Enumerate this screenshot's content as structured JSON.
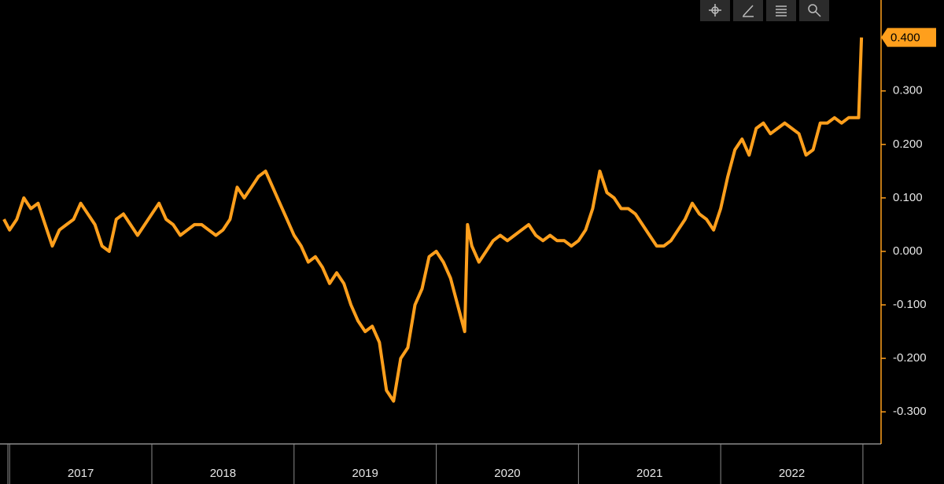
{
  "chart_data": {
    "type": "line",
    "x": [
      2016.96,
      2017.0,
      2017.05,
      2017.1,
      2017.15,
      2017.2,
      2017.25,
      2017.3,
      2017.35,
      2017.4,
      2017.45,
      2017.5,
      2017.55,
      2017.6,
      2017.65,
      2017.7,
      2017.75,
      2017.8,
      2017.85,
      2017.9,
      2017.95,
      2018.0,
      2018.05,
      2018.1,
      2018.15,
      2018.2,
      2018.25,
      2018.3,
      2018.35,
      2018.4,
      2018.45,
      2018.5,
      2018.55,
      2018.6,
      2018.65,
      2018.7,
      2018.75,
      2018.8,
      2018.85,
      2018.9,
      2018.95,
      2019.0,
      2019.05,
      2019.1,
      2019.15,
      2019.2,
      2019.25,
      2019.3,
      2019.35,
      2019.4,
      2019.45,
      2019.5,
      2019.55,
      2019.6,
      2019.65,
      2019.7,
      2019.75,
      2019.8,
      2019.85,
      2019.9,
      2019.95,
      2020.0,
      2020.05,
      2020.1,
      2020.15,
      2020.2,
      2020.22,
      2020.25,
      2020.3,
      2020.35,
      2020.4,
      2020.45,
      2020.5,
      2020.55,
      2020.6,
      2020.65,
      2020.7,
      2020.75,
      2020.8,
      2020.85,
      2020.9,
      2020.95,
      2021.0,
      2021.05,
      2021.1,
      2021.15,
      2021.2,
      2021.25,
      2021.3,
      2021.35,
      2021.4,
      2021.45,
      2021.5,
      2021.55,
      2021.6,
      2021.65,
      2021.7,
      2021.75,
      2021.8,
      2021.85,
      2021.9,
      2021.95,
      2022.0,
      2022.05,
      2022.1,
      2022.15,
      2022.2,
      2022.25,
      2022.3,
      2022.35,
      2022.4,
      2022.45,
      2022.5,
      2022.55,
      2022.6,
      2022.65,
      2022.7,
      2022.75,
      2022.8,
      2022.85,
      2022.9,
      2022.95,
      2022.97,
      2022.99
    ],
    "series": [
      {
        "color": "#ff9f1c",
        "values": [
          0.06,
          0.04,
          0.06,
          0.1,
          0.08,
          0.09,
          0.05,
          0.01,
          0.04,
          0.05,
          0.06,
          0.09,
          0.07,
          0.05,
          0.01,
          0.0,
          0.06,
          0.07,
          0.05,
          0.03,
          0.05,
          0.07,
          0.09,
          0.06,
          0.05,
          0.03,
          0.04,
          0.05,
          0.05,
          0.04,
          0.03,
          0.04,
          0.06,
          0.12,
          0.1,
          0.12,
          0.14,
          0.15,
          0.12,
          0.09,
          0.06,
          0.03,
          0.01,
          -0.02,
          -0.01,
          -0.03,
          -0.06,
          -0.04,
          -0.06,
          -0.1,
          -0.13,
          -0.15,
          -0.14,
          -0.17,
          -0.26,
          -0.28,
          -0.2,
          -0.18,
          -0.1,
          -0.07,
          -0.01,
          0.0,
          -0.02,
          -0.05,
          -0.1,
          -0.15,
          0.05,
          0.01,
          -0.02,
          0.0,
          0.02,
          0.03,
          0.02,
          0.03,
          0.04,
          0.05,
          0.03,
          0.02,
          0.03,
          0.02,
          0.02,
          0.01,
          0.02,
          0.04,
          0.08,
          0.15,
          0.11,
          0.1,
          0.08,
          0.08,
          0.07,
          0.05,
          0.03,
          0.01,
          0.01,
          0.02,
          0.04,
          0.06,
          0.09,
          0.07,
          0.06,
          0.04,
          0.08,
          0.14,
          0.19,
          0.21,
          0.18,
          0.23,
          0.24,
          0.22,
          0.23,
          0.24,
          0.23,
          0.22,
          0.18,
          0.19,
          0.24,
          0.24,
          0.25,
          0.24,
          0.25,
          0.25,
          0.25,
          0.4
        ]
      }
    ],
    "last_value_label": "0.400",
    "xlim": [
      2016.96,
      2023.1
    ],
    "xticks": [
      2017,
      2018,
      2019,
      2020,
      2021,
      2022,
      2023
    ],
    "year_labels": [
      2017,
      2018,
      2019,
      2020,
      2021,
      2022
    ],
    "ylim": [
      -0.36,
      0.47
    ],
    "yticks": [
      {
        "value": -0.3,
        "label": "-0.300"
      },
      {
        "value": -0.2,
        "label": "-0.200"
      },
      {
        "value": -0.1,
        "label": "-0.100"
      },
      {
        "value": 0,
        "label": "0.000"
      },
      {
        "value": 0.1,
        "label": "0.100"
      },
      {
        "value": 0.2,
        "label": "0.200"
      },
      {
        "value": 0.3,
        "label": "0.300"
      }
    ]
  }
}
